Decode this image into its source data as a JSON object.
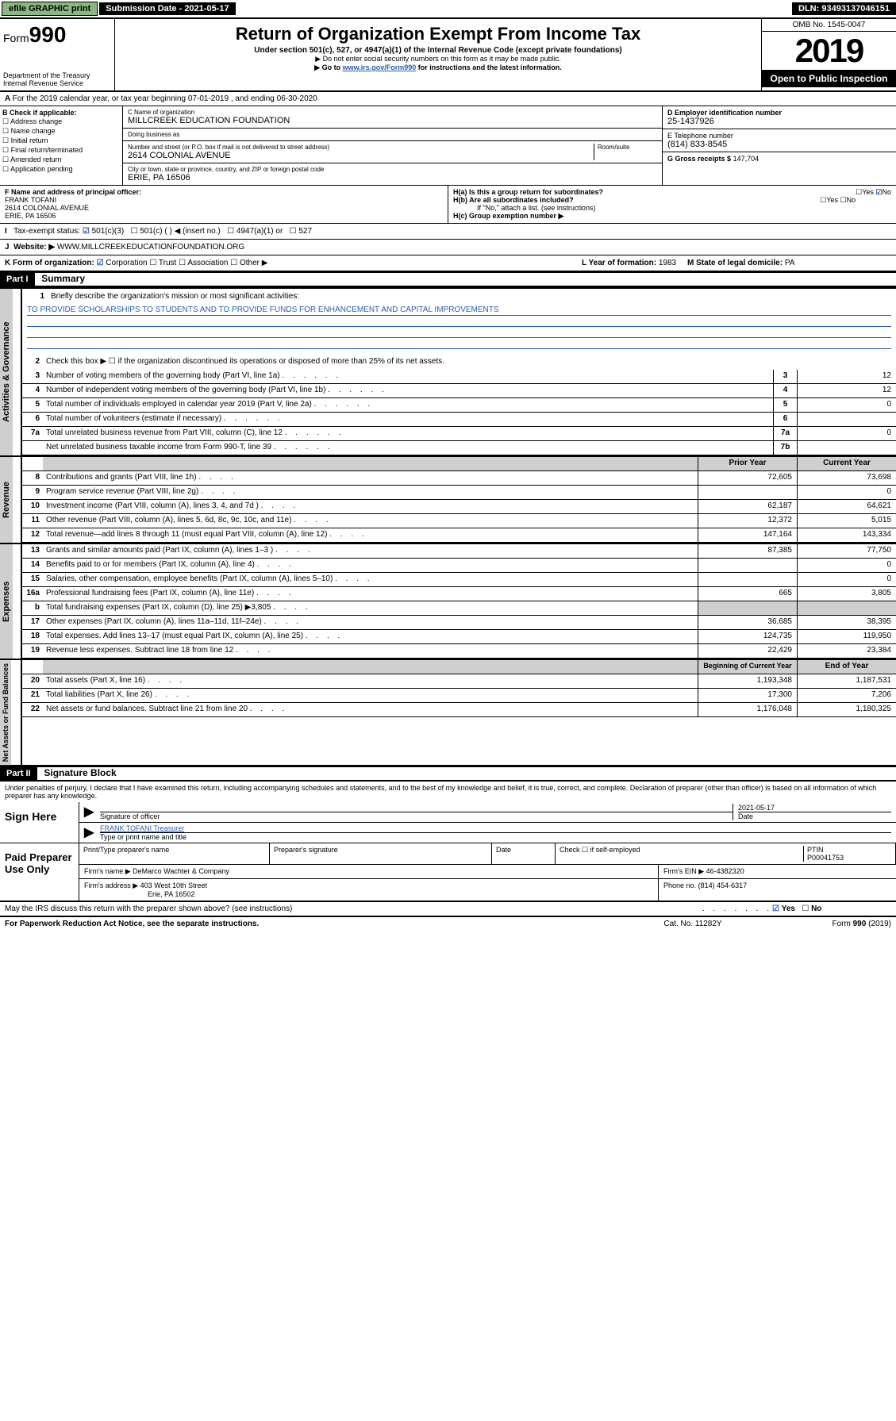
{
  "top": {
    "efile": "efile GRAPHIC print",
    "subdate_label": "Submission Date - 2021-05-17",
    "dln": "DLN: 93493137046151"
  },
  "header": {
    "form_label": "Form",
    "form_num": "990",
    "dept": "Department of the Treasury\nInternal Revenue Service",
    "title": "Return of Organization Exempt From Income Tax",
    "subtitle": "Under section 501(c), 527, or 4947(a)(1) of the Internal Revenue Code (except private foundations)",
    "note1": "▶ Do not enter social security numbers on this form as it may be made public.",
    "note2_pre": "▶ Go to ",
    "note2_link": "www.irs.gov/Form990",
    "note2_post": " for instructions and the latest information.",
    "omb": "OMB No. 1545-0047",
    "year": "2019",
    "badge": "Open to Public Inspection"
  },
  "A": {
    "text": "For the 2019 calendar year, or tax year beginning 07-01-2019    , and ending 06-30-2020"
  },
  "B": {
    "label": "B Check if applicable:",
    "opts": [
      "Address change",
      "Name change",
      "Initial return",
      "Final return/terminated",
      "Amended return",
      "Application pending"
    ]
  },
  "C": {
    "name_lbl": "C Name of organization",
    "name": "MILLCREEK EDUCATION FOUNDATION",
    "dba_lbl": "Doing business as",
    "addr_lbl": "Number and street (or P.O. box if mail is not delivered to street address)",
    "room_lbl": "Room/suite",
    "addr": "2614 COLONIAL AVENUE",
    "city_lbl": "City or town, state or province, country, and ZIP or foreign postal code",
    "city": "ERIE, PA  16506"
  },
  "D": {
    "lbl": "D Employer identification number",
    "val": "25-1437926"
  },
  "E": {
    "lbl": "E Telephone number",
    "val": "(814) 833-8545"
  },
  "G": {
    "lbl": "G Gross receipts $",
    "val": "147,704"
  },
  "F": {
    "lbl": "F  Name and address of principal officer:",
    "name": "FRANK TOFANI",
    "addr1": "2614 COLONIAL AVENUE",
    "addr2": "ERIE, PA  16506"
  },
  "H": {
    "a": "H(a)  Is this a group return for subordinates?",
    "b": "H(b)  Are all subordinates included?",
    "b_note": "If \"No,\" attach a list. (see instructions)",
    "c": "H(c)  Group exemption number ▶",
    "yes": "Yes",
    "no": "No"
  },
  "I": {
    "lbl": "Tax-exempt status:",
    "opts": [
      "501(c)(3)",
      "501(c) (   ) ◀ (insert no.)",
      "4947(a)(1) or",
      "527"
    ]
  },
  "J": {
    "lbl": "Website: ▶",
    "val": "WWW.MILLCREEKEDUCATIONFOUNDATION.ORG"
  },
  "K": {
    "lbl": "K Form of organization:",
    "opts": [
      "Corporation",
      "Trust",
      "Association",
      "Other ▶"
    ]
  },
  "L": {
    "lbl": "L Year of formation:",
    "val": "1983"
  },
  "M": {
    "lbl": "M State of legal domicile:",
    "val": "PA"
  },
  "part1": {
    "header": "Part I",
    "title": "Summary",
    "l1": "Briefly describe the organization's mission or most significant activities:",
    "mission": "TO PROVIDE SCHOLARSHIPS TO STUDENTS AND TO PROVIDE FUNDS FOR ENHANCEMENT AND CAPITAL IMPROVEMENTS",
    "l2": "Check this box ▶ ☐  if the organization discontinued its operations or disposed of more than 25% of its net assets.",
    "lines_a": [
      {
        "n": "3",
        "t": "Number of voting members of the governing body (Part VI, line 1a)",
        "c": "3",
        "v": "12"
      },
      {
        "n": "4",
        "t": "Number of independent voting members of the governing body (Part VI, line 1b)",
        "c": "4",
        "v": "12"
      },
      {
        "n": "5",
        "t": "Total number of individuals employed in calendar year 2019 (Part V, line 2a)",
        "c": "5",
        "v": "0"
      },
      {
        "n": "6",
        "t": "Total number of volunteers (estimate if necessary)",
        "c": "6",
        "v": ""
      },
      {
        "n": "7a",
        "t": "Total unrelated business revenue from Part VIII, column (C), line 12",
        "c": "7a",
        "v": "0"
      },
      {
        "n": "",
        "t": "Net unrelated business taxable income from Form 990-T, line 39",
        "c": "7b",
        "v": ""
      }
    ],
    "col_prior": "Prior Year",
    "col_current": "Current Year",
    "rev": [
      {
        "n": "8",
        "t": "Contributions and grants (Part VIII, line 1h)",
        "p": "72,605",
        "c": "73,698"
      },
      {
        "n": "9",
        "t": "Program service revenue (Part VIII, line 2g)",
        "p": "",
        "c": "0"
      },
      {
        "n": "10",
        "t": "Investment income (Part VIII, column (A), lines 3, 4, and 7d )",
        "p": "62,187",
        "c": "64,621"
      },
      {
        "n": "11",
        "t": "Other revenue (Part VIII, column (A), lines 5, 6d, 8c, 9c, 10c, and 11e)",
        "p": "12,372",
        "c": "5,015"
      },
      {
        "n": "12",
        "t": "Total revenue—add lines 8 through 11 (must equal Part VIII, column (A), line 12)",
        "p": "147,164",
        "c": "143,334"
      }
    ],
    "exp": [
      {
        "n": "13",
        "t": "Grants and similar amounts paid (Part IX, column (A), lines 1–3 )",
        "p": "87,385",
        "c": "77,750"
      },
      {
        "n": "14",
        "t": "Benefits paid to or for members (Part IX, column (A), line 4)",
        "p": "",
        "c": "0"
      },
      {
        "n": "15",
        "t": "Salaries, other compensation, employee benefits (Part IX, column (A), lines 5–10)",
        "p": "",
        "c": "0"
      },
      {
        "n": "16a",
        "t": "Professional fundraising fees (Part IX, column (A), line 11e)",
        "p": "665",
        "c": "3,805"
      },
      {
        "n": "b",
        "t": "Total fundraising expenses (Part IX, column (D), line 25) ▶3,805",
        "p": "",
        "c": ""
      },
      {
        "n": "17",
        "t": "Other expenses (Part IX, column (A), lines 11a–11d, 11f–24e)",
        "p": "36,685",
        "c": "38,395"
      },
      {
        "n": "18",
        "t": "Total expenses. Add lines 13–17 (must equal Part IX, column (A), line 25)",
        "p": "124,735",
        "c": "119,950"
      },
      {
        "n": "19",
        "t": "Revenue less expenses. Subtract line 18 from line 12",
        "p": "22,429",
        "c": "23,384"
      }
    ],
    "col_beg": "Beginning of Current Year",
    "col_end": "End of Year",
    "net": [
      {
        "n": "20",
        "t": "Total assets (Part X, line 16)",
        "p": "1,193,348",
        "c": "1,187,531"
      },
      {
        "n": "21",
        "t": "Total liabilities (Part X, line 26)",
        "p": "17,300",
        "c": "7,206"
      },
      {
        "n": "22",
        "t": "Net assets or fund balances. Subtract line 21 from line 20",
        "p": "1,176,048",
        "c": "1,180,325"
      }
    ],
    "side_ag": "Activities & Governance",
    "side_rev": "Revenue",
    "side_exp": "Expenses",
    "side_net": "Net Assets or Fund Balances"
  },
  "part2": {
    "header": "Part II",
    "title": "Signature Block",
    "perjury": "Under penalties of perjury, I declare that I have examined this return, including accompanying schedules and statements, and to the best of my knowledge and belief, it is true, correct, and complete. Declaration of preparer (other than officer) is based on all information of which preparer has any knowledge.",
    "sign_here": "Sign Here",
    "sig_officer": "Signature of officer",
    "sig_date": "2021-05-17",
    "date_lbl": "Date",
    "officer_name": "FRANK TOFANI Treasurer",
    "type_name": "Type or print name and title",
    "paid": "Paid Preparer Use Only",
    "prep_name_lbl": "Print/Type preparer's name",
    "prep_sig_lbl": "Preparer's signature",
    "prep_date_lbl": "Date",
    "check_self": "Check ☐ if self-employed",
    "ptin_lbl": "PTIN",
    "ptin": "P00041753",
    "firm_name_lbl": "Firm's name    ▶",
    "firm_name": "DeMarco Wachter & Company",
    "firm_ein_lbl": "Firm's EIN ▶",
    "firm_ein": "46-4382320",
    "firm_addr_lbl": "Firm's address ▶",
    "firm_addr": "403 West 10th Street",
    "firm_city": "Erie, PA  16502",
    "phone_lbl": "Phone no.",
    "phone": "(814) 454-6317",
    "discuss": "May the IRS discuss this return with the preparer shown above? (see instructions)",
    "paperwork": "For Paperwork Reduction Act Notice, see the separate instructions.",
    "cat": "Cat. No. 11282Y",
    "formref": "Form 990 (2019)"
  }
}
